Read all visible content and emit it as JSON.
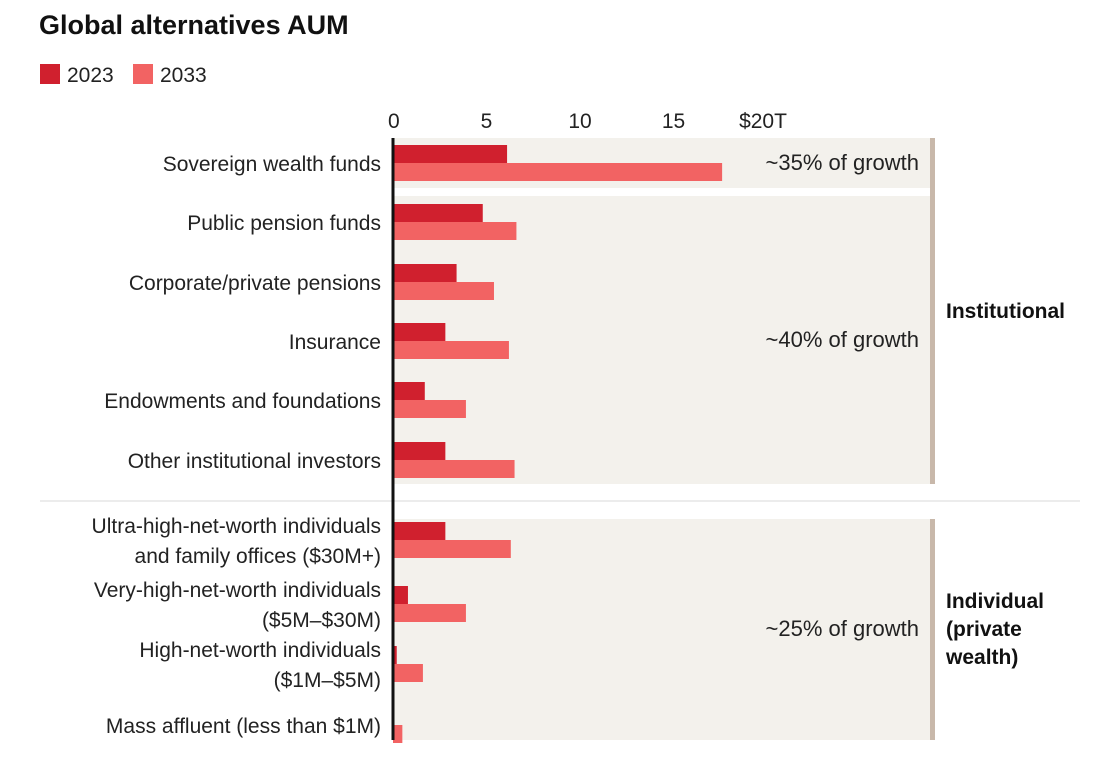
{
  "chart_data": {
    "type": "bar",
    "orientation": "horizontal",
    "title": "Global alternatives AUM",
    "xlim": [
      0,
      20
    ],
    "x_ticks": [
      "0",
      "5",
      "10",
      "15",
      "$20T"
    ],
    "x_tick_values": [
      0,
      5,
      10,
      15,
      20
    ],
    "legend_position": "top-left",
    "series": [
      {
        "name": "2023",
        "color": "#d0202e",
        "values": [
          6.1,
          4.8,
          3.4,
          2.8,
          1.7,
          2.8,
          2.8,
          0.8,
          0.2,
          0.0
        ]
      },
      {
        "name": "2033",
        "color": "#f26363",
        "values": [
          17.6,
          6.6,
          5.4,
          6.2,
          3.9,
          6.5,
          6.3,
          3.9,
          1.6,
          0.5
        ]
      }
    ],
    "categories": [
      [
        "Sovereign wealth funds"
      ],
      [
        "Public pension funds"
      ],
      [
        "Corporate/private pensions"
      ],
      [
        "Insurance"
      ],
      [
        "Endowments and foundations"
      ],
      [
        "Other institutional investors"
      ],
      [
        "Ultra-high-net-worth individuals",
        "and family offices ($30M+)"
      ],
      [
        "Very-high-net-worth individuals",
        "($5M–$30M)"
      ],
      [
        "High-net-worth individuals",
        "($1M–$5M)"
      ],
      [
        "Mass affluent (less than $1M)"
      ]
    ],
    "annotations": [
      {
        "text": "~35% of growth",
        "categories": [
          0
        ]
      },
      {
        "text": "~40% of growth",
        "categories": [
          1,
          2,
          3,
          4,
          5
        ]
      },
      {
        "text": "~25% of growth",
        "categories": [
          6,
          7,
          8,
          9
        ]
      }
    ],
    "groups": [
      {
        "label": [
          "Institutional"
        ],
        "categories": [
          0,
          1,
          2,
          3,
          4,
          5
        ]
      },
      {
        "label": [
          "Individual",
          "(private",
          "wealth)"
        ],
        "categories": [
          6,
          7,
          8,
          9
        ]
      }
    ],
    "colors": {
      "background_panel": "#f3f1ec",
      "bracket": "#c8b8aa",
      "axis": "#111111",
      "divider": "#d8d8d8"
    }
  }
}
